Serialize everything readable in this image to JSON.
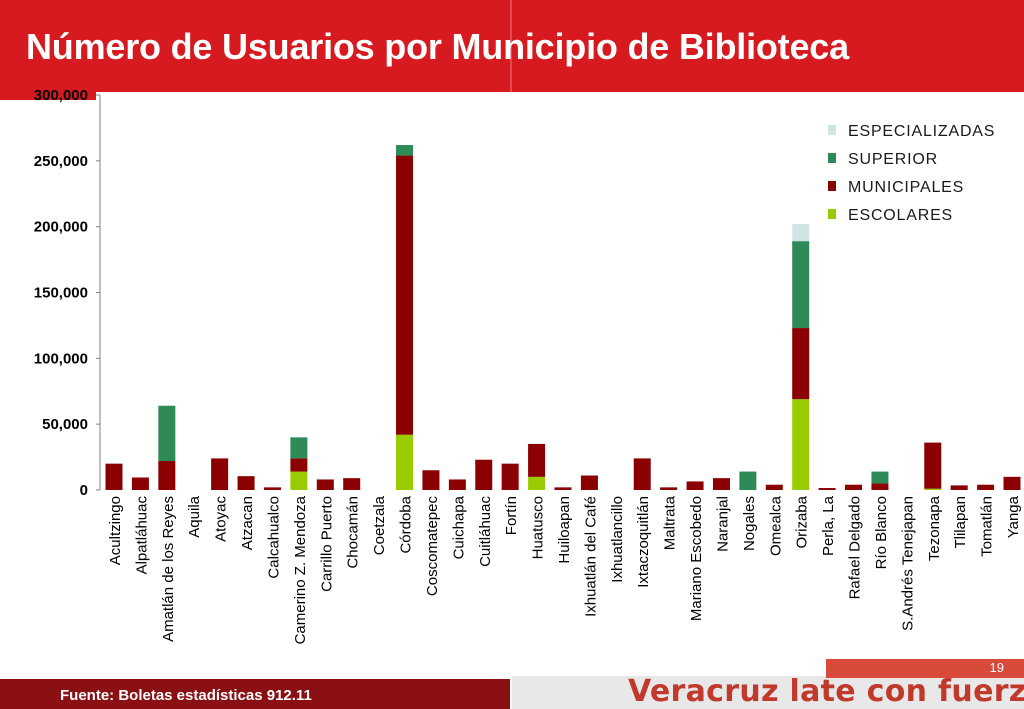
{
  "title": "Número de Usuarios por Municipio de Biblioteca",
  "footer": {
    "source": "Fuente: Boletas estadísticas 912.11",
    "slogan": "Veracruz late con fuerza",
    "page_number": "19"
  },
  "colors": {
    "header": "#d71920",
    "escolares": "#99cc00",
    "municipales": "#8b0000",
    "superior": "#2e8b57",
    "especializadas": "#d0e4e4"
  },
  "chart_data": {
    "type": "bar",
    "stacked": true,
    "ylim": [
      0,
      300000
    ],
    "yticks": [
      "0",
      "50,000",
      "100,000",
      "150,000",
      "200,000",
      "250,000",
      "300,000"
    ],
    "legend_position": "top-right",
    "categories": [
      "Acultzingo",
      "Alpatláhuac",
      "Amatlán de los Reyes",
      "Aquila",
      "Atoyac",
      "Atzacan",
      "Calcahualco",
      "Camerino Z. Mendoza",
      "Carrillo Puerto",
      "Chocamán",
      "Coetzala",
      "Córdoba",
      "Coscomatepec",
      "Cuichapa",
      "Cuitláhuac",
      "Fortín",
      "Huatusco",
      "Huiloapan",
      "Ixhuatlán del Café",
      "Ixhuatlancillo",
      "Ixtaczoquitlán",
      "Maltrata",
      "Mariano Escobedo",
      "Naranjal",
      "Nogales",
      "Omealca",
      "Orizaba",
      "Perla, La",
      "Rafael Delgado",
      "Río Blanco",
      "S.Andrés Tenejapan",
      "Tezonapa",
      "Tlilapan",
      "Tomatlán",
      "Yanga"
    ],
    "series": [
      {
        "name": "ESCOLARES",
        "color": "#99cc00",
        "values": [
          0,
          0,
          0,
          0,
          0,
          0,
          0,
          14000,
          0,
          0,
          0,
          42000,
          0,
          0,
          0,
          0,
          10000,
          0,
          0,
          0,
          0,
          0,
          0,
          0,
          0,
          0,
          69000,
          0,
          0,
          0,
          0,
          1000,
          0,
          0,
          0
        ]
      },
      {
        "name": "MUNICIPALES",
        "color": "#8b0000",
        "values": [
          20000,
          9500,
          22000,
          0,
          24000,
          10500,
          2000,
          10000,
          8000,
          9000,
          0,
          212000,
          15000,
          8000,
          23000,
          20000,
          25000,
          2000,
          11000,
          0,
          24000,
          2000,
          6500,
          9000,
          0,
          4000,
          54000,
          1500,
          4000,
          5000,
          0,
          35000,
          3500,
          4000,
          10000
        ]
      },
      {
        "name": "SUPERIOR",
        "color": "#2e8b57",
        "values": [
          0,
          0,
          42000,
          0,
          0,
          0,
          0,
          16000,
          0,
          0,
          0,
          8000,
          0,
          0,
          0,
          0,
          0,
          0,
          0,
          0,
          0,
          0,
          0,
          0,
          14000,
          0,
          66000,
          0,
          0,
          9000,
          0,
          0,
          0,
          0,
          0
        ]
      },
      {
        "name": "ESPECIALIZADAS",
        "color": "#d0e4e4",
        "values": [
          0,
          0,
          0,
          0,
          0,
          0,
          0,
          0,
          0,
          0,
          0,
          0,
          0,
          0,
          0,
          0,
          0,
          0,
          0,
          0,
          0,
          0,
          0,
          0,
          0,
          0,
          13000,
          0,
          0,
          0,
          0,
          0,
          0,
          0,
          0
        ]
      }
    ]
  }
}
